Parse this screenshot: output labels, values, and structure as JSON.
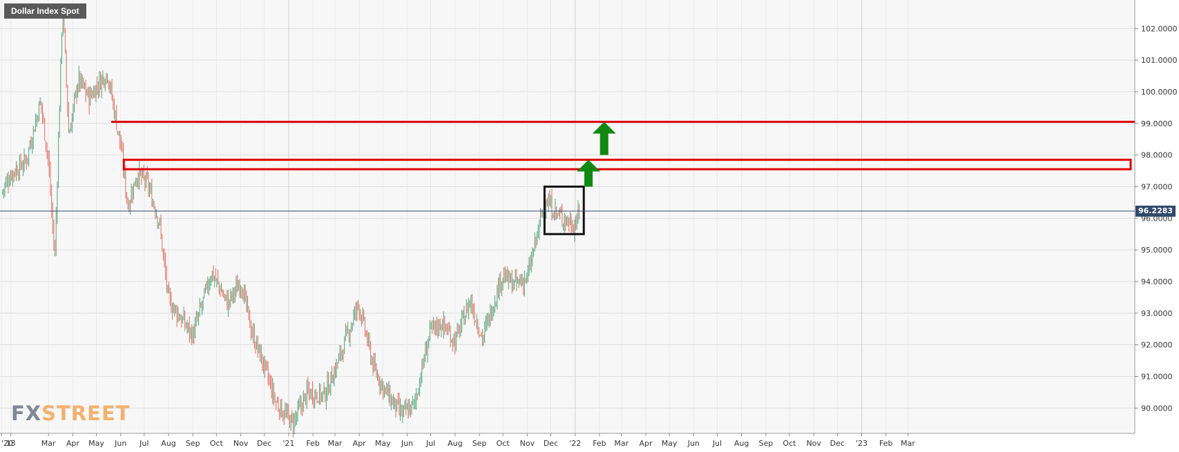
{
  "chart_data": {
    "type": "candlestick",
    "title": "Dollar Index Spot",
    "last_price": "96.2283",
    "ylim": [
      89.2,
      102.9
    ],
    "y_ticks": [
      "102.0000",
      "101.0000",
      "100.0000",
      "99.0000",
      "98.0000",
      "97.0000",
      "96.0000",
      "95.0000",
      "94.0000",
      "93.0000",
      "92.0000",
      "91.0000",
      "90.0000"
    ],
    "x_ticks": [
      "'20",
      "13",
      "Mar",
      "Apr",
      "May",
      "Jun",
      "Jul",
      "Aug",
      "Sep",
      "Oct",
      "Nov",
      "Dec",
      "'21",
      "Feb",
      "Mar",
      "Apr",
      "May",
      "Jun",
      "Jul",
      "Aug",
      "Sep",
      "Oct",
      "Nov",
      "Dec",
      "'22",
      "Feb",
      "Mar",
      "Apr",
      "May",
      "Jun",
      "Jul",
      "Aug",
      "Sep",
      "Oct",
      "Nov",
      "Dec",
      "'23",
      "Feb",
      "Mar"
    ],
    "grid": true,
    "price_path": [
      {
        "date": "2020-01-01",
        "value": 96.8
      },
      {
        "date": "2020-01-13",
        "value": 97.4
      },
      {
        "date": "2020-02-01",
        "value": 97.8
      },
      {
        "date": "2020-02-20",
        "value": 99.7
      },
      {
        "date": "2020-03-01",
        "value": 97.8
      },
      {
        "date": "2020-03-09",
        "value": 94.7
      },
      {
        "date": "2020-03-19",
        "value": 102.8
      },
      {
        "date": "2020-03-27",
        "value": 98.6
      },
      {
        "date": "2020-04-08",
        "value": 100.4
      },
      {
        "date": "2020-04-22",
        "value": 99.8
      },
      {
        "date": "2020-05-05",
        "value": 100.3
      },
      {
        "date": "2020-05-15",
        "value": 100.6
      },
      {
        "date": "2020-06-01",
        "value": 98.3
      },
      {
        "date": "2020-06-10",
        "value": 96.4
      },
      {
        "date": "2020-06-22",
        "value": 97.4
      },
      {
        "date": "2020-07-05",
        "value": 97.1
      },
      {
        "date": "2020-07-20",
        "value": 95.9
      },
      {
        "date": "2020-08-01",
        "value": 93.4
      },
      {
        "date": "2020-08-15",
        "value": 92.9
      },
      {
        "date": "2020-09-01",
        "value": 92.3
      },
      {
        "date": "2020-09-25",
        "value": 94.3
      },
      {
        "date": "2020-10-15",
        "value": 93.3
      },
      {
        "date": "2020-11-01",
        "value": 94.0
      },
      {
        "date": "2020-11-15",
        "value": 92.4
      },
      {
        "date": "2020-12-01",
        "value": 91.3
      },
      {
        "date": "2020-12-15",
        "value": 90.2
      },
      {
        "date": "2021-01-06",
        "value": 89.5
      },
      {
        "date": "2021-01-25",
        "value": 90.5
      },
      {
        "date": "2021-02-15",
        "value": 90.4
      },
      {
        "date": "2021-03-01",
        "value": 91.2
      },
      {
        "date": "2021-03-31",
        "value": 93.3
      },
      {
        "date": "2021-04-20",
        "value": 91.2
      },
      {
        "date": "2021-05-10",
        "value": 90.3
      },
      {
        "date": "2021-05-25",
        "value": 89.8
      },
      {
        "date": "2021-06-10",
        "value": 90.1
      },
      {
        "date": "2021-06-30",
        "value": 92.4
      },
      {
        "date": "2021-07-15",
        "value": 92.7
      },
      {
        "date": "2021-08-01",
        "value": 92.1
      },
      {
        "date": "2021-08-20",
        "value": 93.4
      },
      {
        "date": "2021-09-05",
        "value": 92.2
      },
      {
        "date": "2021-09-30",
        "value": 94.2
      },
      {
        "date": "2021-10-15",
        "value": 93.9
      },
      {
        "date": "2021-11-01",
        "value": 94.1
      },
      {
        "date": "2021-11-24",
        "value": 96.6
      },
      {
        "date": "2021-12-10",
        "value": 96.1
      },
      {
        "date": "2021-12-31",
        "value": 95.8
      },
      {
        "date": "2022-01-07",
        "value": 96.2
      }
    ],
    "annotations": [
      {
        "type": "hline",
        "color": "#e10000",
        "y": 99.05,
        "from": "2020-05-20",
        "to": "2023-03-31"
      },
      {
        "type": "zone",
        "color": "#e10000",
        "y0": 97.55,
        "y1": 97.85,
        "from": "2020-06-05",
        "to": "2023-03-31"
      },
      {
        "type": "box",
        "color": "#111111",
        "y0": 95.5,
        "y1": 97.0,
        "from": "2021-11-23",
        "to": "2022-01-12"
      },
      {
        "type": "arrow-up",
        "color": "#118811",
        "date": "2022-01-18",
        "y0": 97.0,
        "y1": 97.85
      },
      {
        "type": "arrow-up",
        "color": "#118811",
        "date": "2022-02-07",
        "y0": 98.0,
        "y1": 99.05
      }
    ],
    "colors": {
      "up": "#4aa37a",
      "down": "#e06a5a",
      "last_price_line": "#2f4a6b",
      "grid": "#dedede",
      "background": "#f7f7f7"
    }
  },
  "branding": {
    "logo_fx": "FX",
    "logo_street": "STREET"
  }
}
